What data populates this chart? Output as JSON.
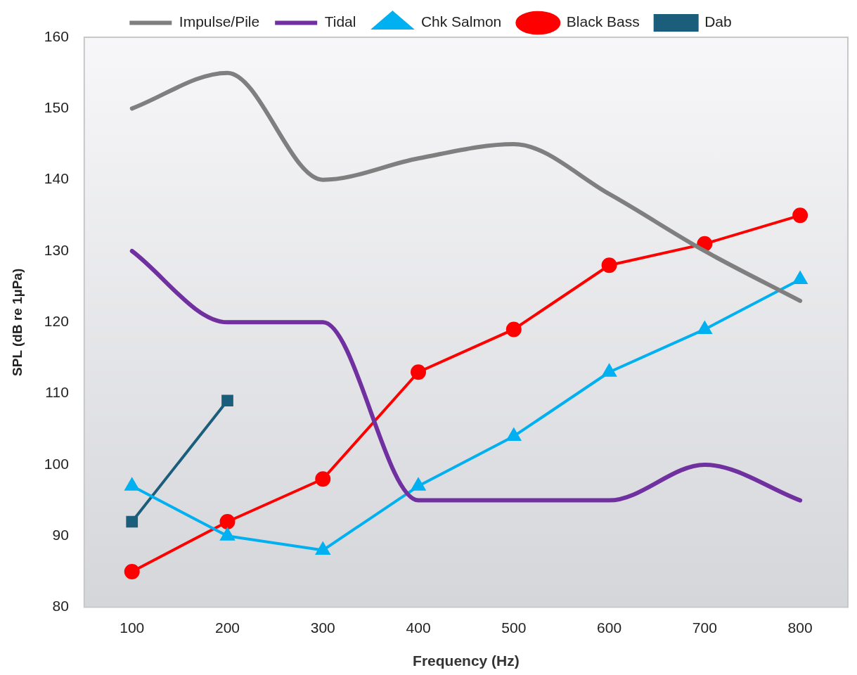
{
  "chart_data": {
    "type": "line",
    "xlabel": "Frequency (Hz)",
    "ylabel": "SPL (dB re 1µPa)",
    "categories": [
      "100",
      "200",
      "300",
      "400",
      "500",
      "600",
      "700",
      "800"
    ],
    "series": [
      {
        "name": "Impulse/Pile",
        "color": "#7f7f7f",
        "marker": "none",
        "values": [
          150,
          155,
          140,
          143,
          145,
          138,
          130,
          123
        ]
      },
      {
        "name": "Tidal",
        "color": "#7030a0",
        "marker": "none",
        "values": [
          130,
          120,
          120,
          95,
          95,
          95,
          100,
          95
        ]
      },
      {
        "name": "Chk Salmon",
        "color": "#00b0f0",
        "marker": "triangle",
        "values": [
          97,
          90,
          88,
          97,
          104,
          113,
          119,
          126
        ]
      },
      {
        "name": "Black Bass",
        "color": "#ff0000",
        "marker": "circle",
        "values": [
          85,
          92,
          98,
          113,
          119,
          128,
          131,
          135
        ]
      },
      {
        "name": "Dab",
        "color": "#1b5e7b",
        "marker": "square",
        "values": [
          92,
          109,
          null,
          null,
          null,
          null,
          null,
          null
        ]
      }
    ],
    "ylim": [
      80,
      160
    ],
    "yticks": [
      80,
      90,
      100,
      110,
      120,
      130,
      140,
      150,
      160
    ],
    "grid": false,
    "legend": "top"
  }
}
